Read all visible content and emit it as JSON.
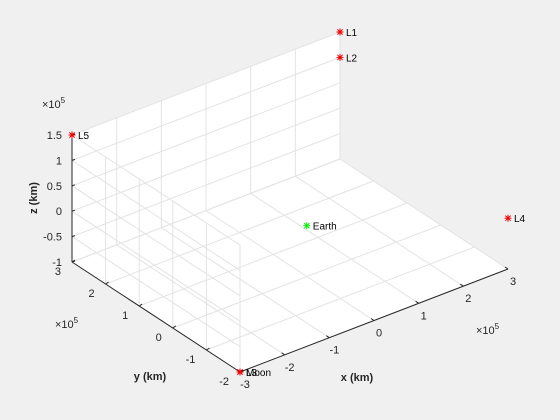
{
  "chart_data": {
    "type": "scatter",
    "projection": "3d",
    "background_color": "#f0f0f0",
    "axes_color": "#ffffff",
    "grid": true,
    "box": false,
    "xlabel": "x (km)",
    "ylabel": "y (km)",
    "zlabel": "z (km)",
    "x_exponent_label": "×10",
    "x_exponent_power": "5",
    "y_exponent_label": "×10",
    "y_exponent_power": "5",
    "z_exponent_label": "×10",
    "z_exponent_power": "5",
    "xlim": [
      -3,
      3
    ],
    "ylim": [
      -2,
      3
    ],
    "zlim": [
      -1,
      1.5
    ],
    "x_ticks": [
      -3,
      -2,
      -1,
      0,
      1,
      2,
      3
    ],
    "x_tick_labels": [
      "-3",
      "-2",
      "-1",
      "0",
      "1",
      "2",
      "3"
    ],
    "y_ticks": [
      -2,
      -1,
      0,
      1,
      2,
      3
    ],
    "y_tick_labels": [
      "-2",
      "-1",
      "0",
      "1",
      "2",
      "3"
    ],
    "z_ticks": [
      -1,
      -0.5,
      0,
      0.5,
      1,
      1.5
    ],
    "z_tick_labels": [
      "-1",
      "-0.5",
      "0",
      "0.5",
      "1",
      "1.5"
    ],
    "points": [
      {
        "label": "Earth",
        "x": 0,
        "y": 0,
        "z": 0,
        "color": "#00ee00",
        "marker": "*"
      },
      {
        "label": "Moon",
        "x": -3,
        "y": -2,
        "z": -1,
        "color": "#ee0000",
        "marker": "*"
      },
      {
        "label": "L1",
        "x": 3,
        "y": 3,
        "z": 1.5,
        "color": "#ee0000",
        "marker": "*"
      },
      {
        "label": "L2",
        "x": 3,
        "y": 3,
        "z": 1,
        "color": "#ee0000",
        "marker": "*"
      },
      {
        "label": "L3",
        "x": -3,
        "y": -2,
        "z": -1,
        "color": "#ee0000",
        "marker": "*"
      },
      {
        "label": "L4",
        "x": 3,
        "y": -2,
        "z": 0,
        "color": "#ee0000",
        "marker": "*"
      },
      {
        "label": "L5",
        "x": -3,
        "y": 3,
        "z": 1.5,
        "color": "#ee0000",
        "marker": "*"
      }
    ]
  }
}
